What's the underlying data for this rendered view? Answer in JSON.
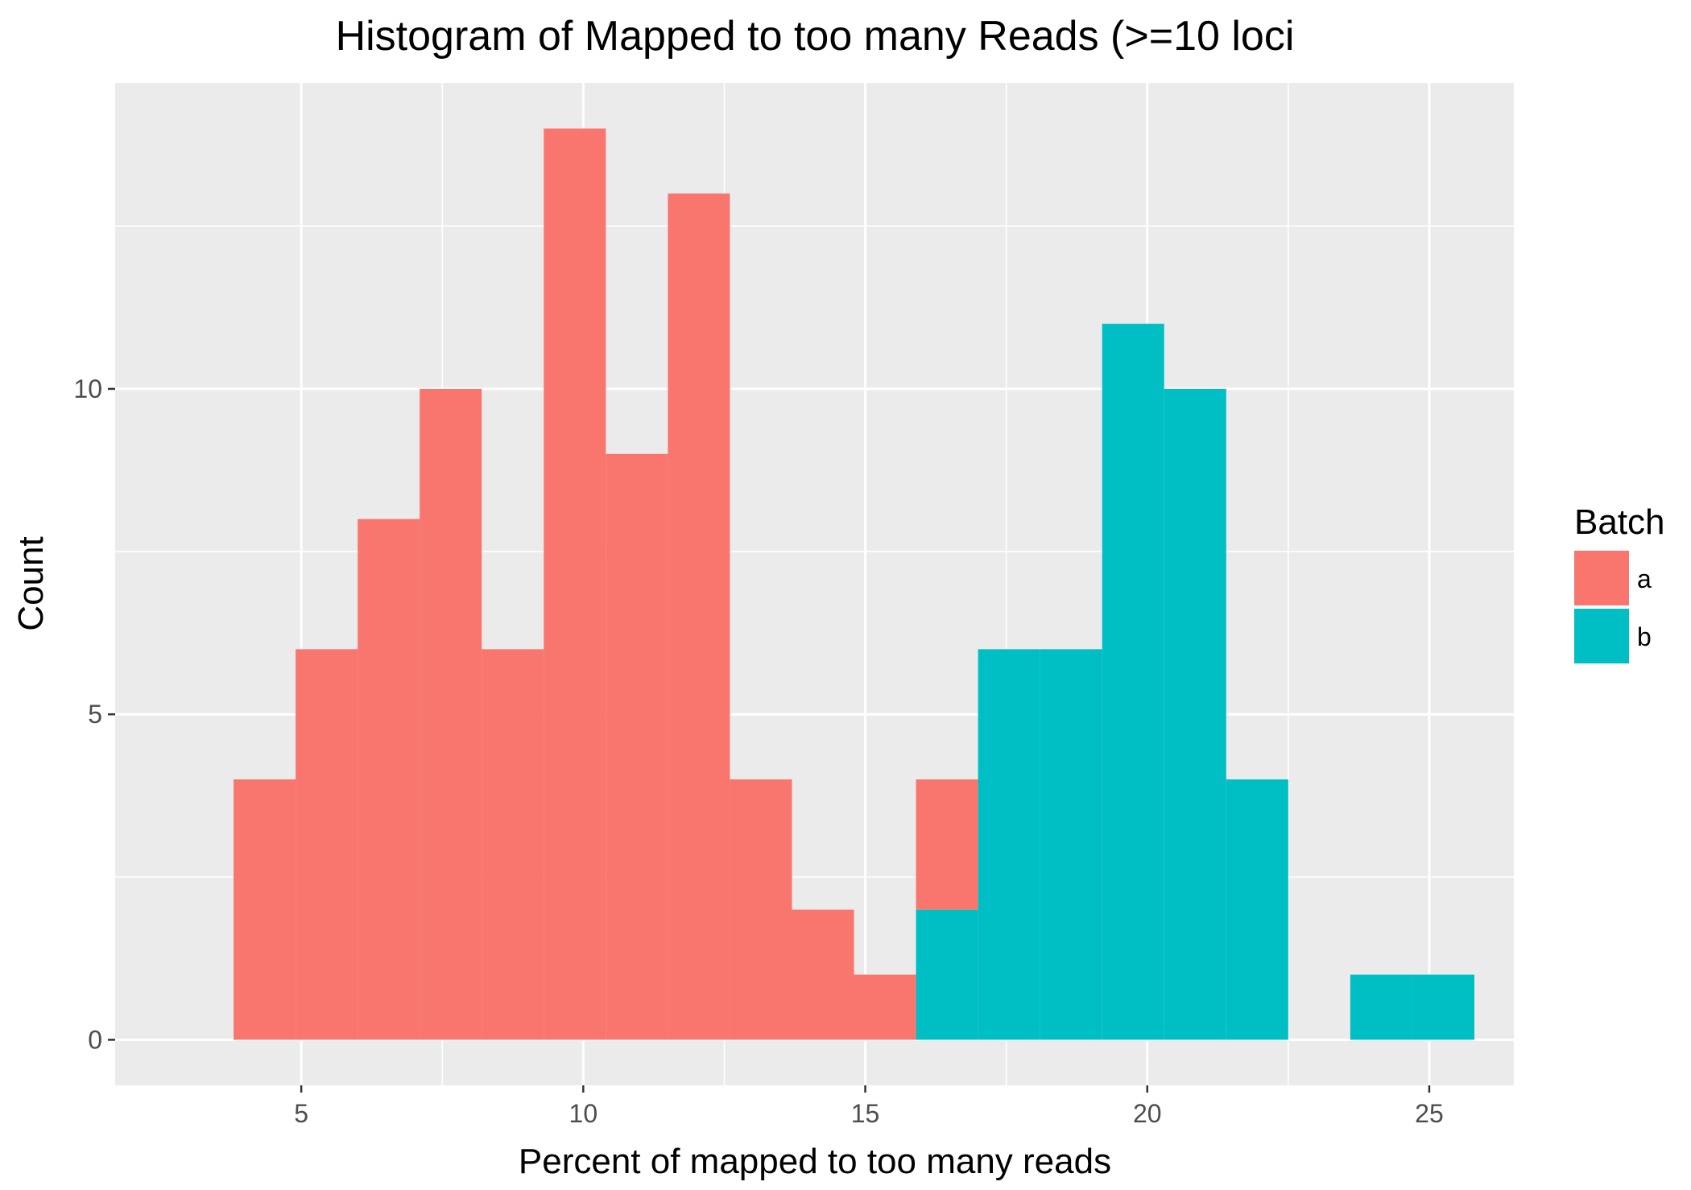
{
  "chart_data": {
    "type": "bar",
    "subtype": "stacked-histogram",
    "title": "Histogram of Mapped to too many Reads (>=10 loci",
    "xlabel": "Percent of mapped to too many reads",
    "ylabel": "Count",
    "xlim": [
      1.7,
      26.5
    ],
    "ylim": [
      -0.7,
      14.7
    ],
    "xticks": [
      5,
      10,
      15,
      20,
      25
    ],
    "yticks": [
      0,
      5,
      10
    ],
    "x_minor_grid": [
      7.5,
      12.5,
      17.5,
      22.5
    ],
    "y_minor_grid": [
      2.5,
      7.5,
      12.5
    ],
    "grid": true,
    "legend": {
      "title": "Batch",
      "position": "right"
    },
    "series": [
      {
        "name": "a",
        "color": "#F8766D",
        "bins": [
          {
            "x0": 3.8,
            "x1": 4.9,
            "count": 4
          },
          {
            "x0": 4.9,
            "x1": 6.0,
            "count": 6
          },
          {
            "x0": 6.0,
            "x1": 7.1,
            "count": 8
          },
          {
            "x0": 7.1,
            "x1": 8.2,
            "count": 10
          },
          {
            "x0": 8.2,
            "x1": 9.3,
            "count": 6
          },
          {
            "x0": 9.3,
            "x1": 10.4,
            "count": 14
          },
          {
            "x0": 10.4,
            "x1": 11.5,
            "count": 9
          },
          {
            "x0": 11.5,
            "x1": 12.6,
            "count": 13
          },
          {
            "x0": 12.6,
            "x1": 13.7,
            "count": 4
          },
          {
            "x0": 13.7,
            "x1": 14.8,
            "count": 2
          },
          {
            "x0": 14.8,
            "x1": 15.9,
            "count": 1
          },
          {
            "x0": 15.9,
            "x1": 17.0,
            "count": 2
          }
        ]
      },
      {
        "name": "b",
        "color": "#00BFC4",
        "bins": [
          {
            "x0": 15.9,
            "x1": 17.0,
            "count": 2
          },
          {
            "x0": 17.0,
            "x1": 18.1,
            "count": 6
          },
          {
            "x0": 18.1,
            "x1": 19.2,
            "count": 6
          },
          {
            "x0": 19.2,
            "x1": 20.3,
            "count": 11
          },
          {
            "x0": 20.3,
            "x1": 21.4,
            "count": 10
          },
          {
            "x0": 21.4,
            "x1": 22.5,
            "count": 4
          },
          {
            "x0": 23.6,
            "x1": 24.7,
            "count": 1
          },
          {
            "x0": 24.7,
            "x1": 25.8,
            "count": 1
          }
        ]
      }
    ]
  }
}
